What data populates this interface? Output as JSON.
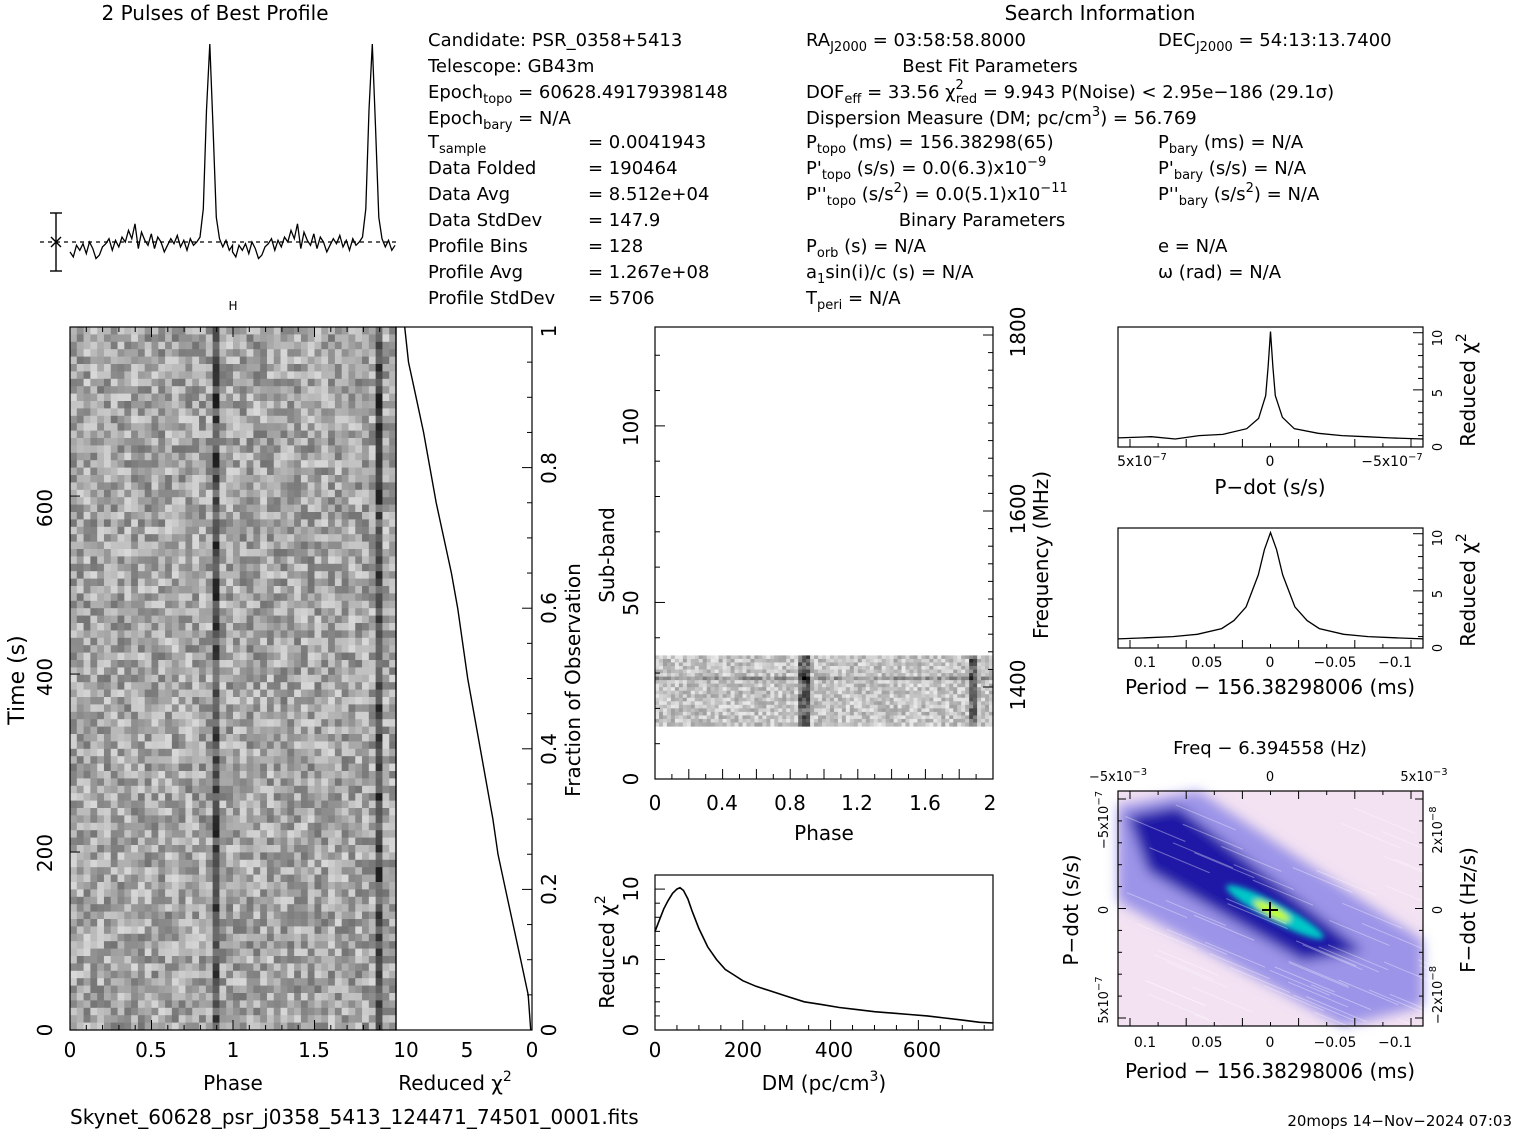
{
  "header": {
    "profile_title": "2 Pulses of Best Profile",
    "search_title": "Search Information",
    "best_fit_title": "Best Fit Parameters",
    "binary_title": "Binary Parameters"
  },
  "info_left": [
    {
      "label": "Candidate:  PSR_0358+5413",
      "value": ""
    },
    {
      "label": "Telescope:  GB43m",
      "value": ""
    },
    {
      "label": "Epoch",
      "sub": "topo",
      "value": " = 60628.49179398148"
    },
    {
      "label": "Epoch",
      "sub": "bary",
      "value": " = N/A"
    },
    {
      "label": "T",
      "sub": "sample",
      "value": "=   0.0041943"
    },
    {
      "label": "Data Folded",
      "value": "=   190464"
    },
    {
      "label": "Data Avg",
      "value": "=   8.512e+04"
    },
    {
      "label": "Data StdDev",
      "value": "=   147.9"
    },
    {
      "label": "Profile Bins",
      "value": "=   128"
    },
    {
      "label": "Profile Avg",
      "value": "=   1.267e+08"
    },
    {
      "label": "Profile StdDev",
      "value": "=   5706"
    }
  ],
  "info_mid": {
    "ra": "RA",
    "ra_sub": "J2000",
    "ra_val": " = 03:58:58.8000",
    "dec": "DEC",
    "dec_sub": "J2000",
    "dec_val": " = 54:13:13.7400",
    "dof": "DOF",
    "dof_sub": "eff",
    "dof_val": " = 33.56  ",
    "chi": "χ",
    "chi_sup": "2",
    "chi_sub": "red",
    "chi_val": " = 9.943  P(Noise) < 2.95e−186  (29.1σ)",
    "dm_line": "Dispersion Measure (DM; pc/cm",
    "dm_sup": "3",
    "dm_val": ") = 56.769",
    "ptopo": "P",
    "ptopo_sub": "topo",
    "ptopo_val": " (ms) =  156.38298(65)",
    "pdtopo": "P'",
    "pdtopo_sub": "topo",
    "pdtopo_val": " (s/s) = 0.0(6.3)x10",
    "pdtopo_exp": "−9",
    "pddtopo": "P''",
    "pddtopo_sub": "topo",
    "pddtopo_val": " (s/s",
    "pddtopo_sup": "2",
    "pddtopo_val2": ") = 0.0(5.1)x10",
    "pddtopo_exp": "−11",
    "porb": "P",
    "porb_sub": "orb",
    "porb_val": " (s) = N/A",
    "a1": "a",
    "a1_sub": "1",
    "a1_val": "sin(i)/c (s) = N/A",
    "tperi": "T",
    "tperi_sub": "peri",
    "tperi_val": " = N/A"
  },
  "info_right": {
    "pbary": "P",
    "pbary_sub": "bary",
    "pbary_val": " (ms) = N/A",
    "pdbary": "P'",
    "pdbary_sub": "bary",
    "pdbary_val": " (s/s) = N/A",
    "pddbary": "P''",
    "pddbary_sub": "bary",
    "pddbary_val": " (s/s",
    "pddbary_sup": "2",
    "pddbary_val2": ") = N/A",
    "e": "e = N/A",
    "omega": "ω (rad) = N/A"
  },
  "footer": {
    "filename": "Skynet_60628_psr_j0358_5413_124471_74501_0001.fits",
    "stamp": "20mops 14−Nov−2024 07:03"
  },
  "chart_data": [
    {
      "id": "profile",
      "type": "line",
      "title": "2 Pulses of Best Profile",
      "x": [
        0.0,
        0.02,
        0.04,
        0.06,
        0.08,
        0.1,
        0.12,
        0.14,
        0.16,
        0.18,
        0.2,
        0.22,
        0.24,
        0.26,
        0.28,
        0.3,
        0.32,
        0.34,
        0.36,
        0.38,
        0.4,
        0.42,
        0.44,
        0.46,
        0.48,
        0.5,
        0.52,
        0.54,
        0.56,
        0.58,
        0.6,
        0.62,
        0.64,
        0.66,
        0.68,
        0.7,
        0.72,
        0.74,
        0.76,
        0.78,
        0.8,
        0.82,
        0.84,
        0.86,
        0.88,
        0.9,
        0.92,
        0.94,
        0.96,
        0.98,
        1.0
      ],
      "values": [
        -0.6,
        -0.9,
        -0.2,
        -0.5,
        -0.1,
        -0.7,
        0.0,
        -0.4,
        -1.0,
        -0.8,
        -0.3,
        -0.1,
        0.2,
        -0.5,
        0.1,
        -0.3,
        0.3,
        0.0,
        0.7,
        0.2,
        1.1,
        -0.4,
        0.6,
        0.1,
        -0.2,
        0.5,
        -0.4,
        0.3,
        0.0,
        -0.6,
        -0.2,
        0.2,
        -0.1,
        0.4,
        -0.3,
        0.1,
        -0.5,
        0.2,
        -0.2,
        0.0,
        0.3,
        2.0,
        8.0,
        12.0,
        7.0,
        1.5,
        0.2,
        -0.3,
        0.1,
        -0.5,
        -0.2
      ],
      "note_units": "phase vs relative intensity (one pulse; drawn twice)",
      "error_bar": 1
    },
    {
      "id": "time_phase",
      "type": "heatmap",
      "xlabel": "Phase",
      "ylabel": "Time (s)",
      "xlim": [
        0,
        2
      ],
      "ylim": [
        0,
        790
      ],
      "xticks": [
        "0",
        "0.5",
        "1",
        "1.5"
      ],
      "yticks": [
        "0",
        "200",
        "400",
        "600"
      ],
      "pulse_phase": 0.88,
      "ylabel_right": "Fraction of Observation",
      "y2ticks": [
        "0",
        "0.2",
        "0.4",
        "0.6",
        "0.8",
        "1"
      ]
    },
    {
      "id": "chi_vs_fraction",
      "type": "line",
      "xlabel": "Reduced χ",
      "xlabel_sup": "2",
      "xlim": [
        10,
        0
      ],
      "xticks": [
        "10",
        "5",
        "0"
      ],
      "frac": [
        0.0,
        0.05,
        0.1,
        0.15,
        0.2,
        0.25,
        0.3,
        0.35,
        0.4,
        0.45,
        0.5,
        0.55,
        0.6,
        0.65,
        0.7,
        0.75,
        0.8,
        0.85,
        0.9,
        0.95,
        1.0
      ],
      "chi": [
        0.1,
        0.3,
        0.9,
        1.5,
        2.1,
        2.7,
        3.1,
        3.6,
        4.1,
        4.6,
        5.1,
        5.5,
        5.9,
        6.4,
        7.0,
        7.6,
        8.1,
        8.6,
        9.2,
        9.8,
        10.1
      ]
    },
    {
      "id": "subband_phase",
      "type": "heatmap",
      "xlabel": "Phase",
      "ylabel": "Sub-band",
      "ylabel_right": "Frequency (MHz)",
      "xlim": [
        0,
        2
      ],
      "ylim": [
        0,
        128
      ],
      "xticks": [
        "0",
        "0.4",
        "0.8",
        "1.2",
        "1.6",
        "2"
      ],
      "yticks": [
        "0",
        "50",
        "100"
      ],
      "y2ticks": [
        "1400",
        "1600",
        "1800"
      ],
      "band_range": [
        15,
        35
      ],
      "pulse_phase": 0.88
    },
    {
      "id": "dm_curve",
      "type": "line",
      "xlabel": "DM (pc/cm",
      "xlabel_sup": "3",
      "xlabel_end": ")",
      "ylabel": "Reduced χ",
      "ylabel_sup": "2",
      "xlim": [
        0,
        770
      ],
      "ylim": [
        0,
        11
      ],
      "xticks": [
        "0",
        "200",
        "400",
        "600"
      ],
      "yticks": [
        "0",
        "5",
        "10"
      ],
      "x": [
        0,
        10,
        20,
        30,
        40,
        50,
        57,
        65,
        75,
        85,
        100,
        120,
        140,
        160,
        180,
        200,
        230,
        260,
        300,
        340,
        380,
        420,
        460,
        500,
        540,
        580,
        620,
        660,
        700,
        740,
        770
      ],
      "values": [
        7.0,
        7.8,
        8.6,
        9.2,
        9.7,
        10.0,
        10.1,
        9.9,
        9.3,
        8.4,
        7.2,
        5.9,
        5.0,
        4.3,
        3.9,
        3.5,
        3.1,
        2.8,
        2.4,
        2.0,
        1.8,
        1.6,
        1.45,
        1.3,
        1.2,
        1.1,
        1.0,
        0.85,
        0.7,
        0.55,
        0.5
      ]
    },
    {
      "id": "pdot_curve",
      "type": "line",
      "xlabel": "P−dot (s/s)",
      "ylabel_right": "Reduced χ",
      "ylabel_sup": "2",
      "xlim": [
        6.4e-07,
        -6.4e-07
      ],
      "ylim": [
        0,
        10.5
      ],
      "xtick_labels": [
        "5x10",
        "0",
        "−5x10"
      ],
      "xtick_exp": [
        "−7",
        "",
        "−7"
      ],
      "yticks": [
        "0",
        "5",
        "10"
      ],
      "x": [
        6.4e-07,
        5e-07,
        4e-07,
        3e-07,
        2e-07,
        1e-07,
        5e-08,
        2e-08,
        1e-08,
        0,
        -1e-08,
        -2e-08,
        -5e-08,
        -1e-07,
        -2e-07,
        -3e-07,
        -4e-07,
        -5e-07,
        -6.4e-07
      ],
      "values": [
        0.8,
        0.9,
        0.7,
        1.0,
        1.1,
        1.6,
        2.5,
        4.5,
        7.0,
        10.1,
        7.0,
        4.5,
        2.6,
        1.6,
        1.2,
        1.0,
        0.9,
        0.8,
        0.7
      ]
    },
    {
      "id": "period_curve",
      "type": "line",
      "xlabel": "Period − 156.38298006 (ms)",
      "ylabel_right": "Reduced χ",
      "ylabel_sup": "2",
      "xlim": [
        0.125,
        -0.125
      ],
      "ylim": [
        0,
        10.5
      ],
      "xticks": [
        "0.1",
        "0.05",
        "0",
        "−0.05",
        "−0.1"
      ],
      "yticks": [
        "0",
        "5",
        "10"
      ],
      "x": [
        0.125,
        0.1,
        0.08,
        0.06,
        0.04,
        0.03,
        0.02,
        0.01,
        0.005,
        0,
        -0.005,
        -0.01,
        -0.02,
        -0.03,
        -0.04,
        -0.06,
        -0.08,
        -0.1,
        -0.125
      ],
      "values": [
        0.8,
        0.9,
        1.0,
        1.2,
        1.7,
        2.4,
        3.6,
        6.4,
        8.6,
        10.1,
        8.6,
        6.4,
        3.6,
        2.4,
        1.7,
        1.2,
        1.0,
        0.9,
        0.8
      ]
    },
    {
      "id": "p_pdot_plane",
      "type": "heatmap",
      "title": "Freq − 6.394558 (Hz)",
      "xlabel": "Period − 156.38298006 (ms)",
      "ylabel": "P−dot (s/s)",
      "ylabel_right": "F−dot (Hz/s)",
      "xticks": [
        "0.1",
        "0.05",
        "0",
        "−0.05",
        "−0.1"
      ],
      "top_ticks": [
        "−5x10",
        "0",
        "5x10"
      ],
      "top_exp": [
        "−3",
        "",
        "−3"
      ],
      "left_ticks": [
        "−5x10",
        "0",
        "5x10"
      ],
      "left_exp": [
        "−7",
        "",
        "−7"
      ],
      "right_ticks": [
        "2x10",
        "0",
        "−2x10"
      ],
      "right_exp": [
        "−8",
        "",
        "−8"
      ],
      "best_fit": [
        0,
        0
      ],
      "colors": [
        "#f3e2f2",
        "#8c86e6",
        "#1010a0",
        "#00c8c8",
        "#c8ff00"
      ]
    }
  ]
}
